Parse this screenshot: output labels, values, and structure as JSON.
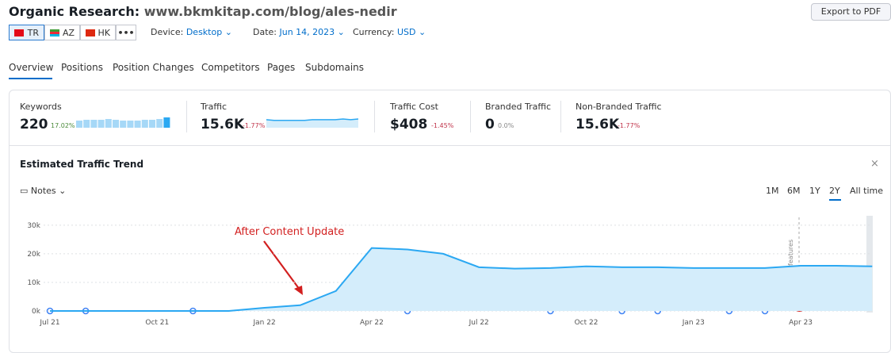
{
  "header": {
    "title": "Organic Research:",
    "domain": "www.bkmkitap.com/blog/ales-nedir",
    "export": "Export to PDF"
  },
  "databases": [
    "TR",
    "AZ",
    "HK"
  ],
  "filters": [
    {
      "label": "Device:",
      "value": "Desktop"
    },
    {
      "label": "Date:",
      "value": "Jun 14, 2023"
    },
    {
      "label": "Currency:",
      "value": "USD"
    }
  ],
  "tabs": [
    "Overview",
    "Positions",
    "Position Changes",
    "Competitors",
    "Pages",
    "Subdomains"
  ],
  "metrics": [
    {
      "label": "Keywords",
      "value": "220",
      "change": "17.02%",
      "spark": [
        9,
        10,
        10,
        10,
        11,
        10,
        9,
        9,
        9,
        10,
        10,
        11,
        13
      ]
    },
    {
      "label": "Traffic",
      "value": "15.6K",
      "change": "-1.77%",
      "spark": [
        12,
        11,
        11,
        11,
        11,
        11,
        12,
        12,
        12,
        12,
        13,
        12,
        13
      ]
    },
    {
      "label": "Traffic Cost",
      "value": "$408",
      "change": "-1.45%"
    },
    {
      "label": "Branded Traffic",
      "value": "0",
      "change": "0.0%"
    },
    {
      "label": "Non-Branded Traffic",
      "value": "15.6K",
      "change": "-1.77%"
    }
  ],
  "chart_data": {
    "type": "area",
    "title": "Estimated Traffic Trend",
    "notes": "Notes",
    "periods": [
      "1M",
      "6M",
      "1Y",
      "2Y",
      "All time"
    ],
    "annotation": "After Content Update",
    "marker_label": "SERP features",
    "categories": [
      "Jul 21",
      null,
      null,
      "Oct 21",
      null,
      null,
      "Jan 22",
      null,
      null,
      "Apr 22",
      null,
      null,
      "Jul 22",
      null,
      null,
      "Oct 22",
      null,
      null,
      "Jan 23",
      null,
      null,
      "Apr 23",
      null,
      null
    ],
    "values": [
      0,
      0,
      0,
      0,
      0,
      0,
      1100,
      2000,
      7000,
      22000,
      21500,
      20000,
      15300,
      14800,
      15000,
      15600,
      15300,
      15300,
      15000,
      15000,
      15000,
      15800,
      15800,
      15600
    ],
    "color": "#2ba8f2",
    "ylim": [
      0,
      33000
    ],
    "yticks": [
      {
        "value": 0,
        "label": "0k"
      },
      {
        "value": 10000,
        "label": "10k"
      },
      {
        "value": 20000,
        "label": "20k"
      },
      {
        "value": 30000,
        "label": "30k"
      }
    ],
    "grid": true
  }
}
